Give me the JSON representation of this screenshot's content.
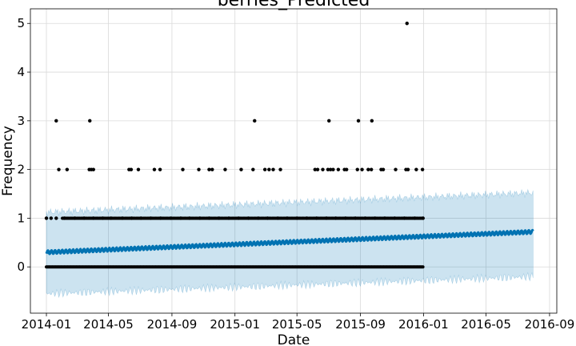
{
  "chart_data": {
    "type": "line",
    "title": "berries_Predicted",
    "xlabel": "Date",
    "ylabel": "Frequency",
    "x_ticks": [
      "2014-01",
      "2014-05",
      "2014-09",
      "2015-01",
      "2015-05",
      "2015-09",
      "2016-01",
      "2016-05",
      "2016-09"
    ],
    "y_ticks": [
      "0",
      "1",
      "2",
      "3",
      "4",
      "5"
    ],
    "xlim": [
      "2013-12-01",
      "2016-09-15"
    ],
    "ylim": [
      -0.95,
      5.3
    ],
    "grid": true,
    "colors": {
      "forecast_line": "#0072B2",
      "interval_fill": "#0072B2",
      "observed_points": "#000000"
    },
    "forecast": {
      "start": "2014-01-01",
      "end": "2016-07-31",
      "yhat_start": 0.3,
      "yhat_end": 0.72,
      "lower_start": -0.55,
      "lower_end": -0.2,
      "upper_start": 1.12,
      "upper_end": 1.52
    },
    "observed": {
      "date_range": [
        "2014-01-01",
        "2015-12-31"
      ],
      "points": [
        {
          "date": "2014-01-01",
          "y": 1
        },
        {
          "date": "2014-01-10",
          "y": 1
        },
        {
          "date": "2014-01-20",
          "y": 1
        },
        {
          "date": "2014-02-05",
          "y": 1
        },
        {
          "date": "2014-02-25",
          "y": 1
        },
        {
          "date": "2014-03-15",
          "y": 1
        },
        {
          "date": "2014-04-02",
          "y": 1
        },
        {
          "date": "2014-04-20",
          "y": 1
        },
        {
          "date": "2014-05-06",
          "y": 1
        },
        {
          "date": "2014-05-28",
          "y": 1
        },
        {
          "date": "2014-06-15",
          "y": 1
        },
        {
          "date": "2014-07-03",
          "y": 1
        },
        {
          "date": "2014-07-22",
          "y": 1
        },
        {
          "date": "2014-08-10",
          "y": 1
        },
        {
          "date": "2014-08-30",
          "y": 1
        },
        {
          "date": "2014-09-18",
          "y": 1
        },
        {
          "date": "2014-10-05",
          "y": 1
        },
        {
          "date": "2014-10-25",
          "y": 1
        },
        {
          "date": "2014-11-12",
          "y": 1
        },
        {
          "date": "2014-12-01",
          "y": 1
        },
        {
          "date": "2014-12-20",
          "y": 1
        },
        {
          "date": "2015-01-08",
          "y": 1
        },
        {
          "date": "2015-01-27",
          "y": 1
        },
        {
          "date": "2015-02-15",
          "y": 1
        },
        {
          "date": "2015-03-05",
          "y": 1
        },
        {
          "date": "2015-03-25",
          "y": 1
        },
        {
          "date": "2015-04-12",
          "y": 1
        },
        {
          "date": "2015-05-01",
          "y": 1
        },
        {
          "date": "2015-05-20",
          "y": 1
        },
        {
          "date": "2015-06-08",
          "y": 1
        },
        {
          "date": "2015-06-27",
          "y": 1
        },
        {
          "date": "2015-07-15",
          "y": 1
        },
        {
          "date": "2015-08-03",
          "y": 1
        },
        {
          "date": "2015-08-22",
          "y": 1
        },
        {
          "date": "2015-09-10",
          "y": 1
        },
        {
          "date": "2015-09-29",
          "y": 1
        },
        {
          "date": "2015-10-18",
          "y": 1
        },
        {
          "date": "2015-11-06",
          "y": 1
        },
        {
          "date": "2015-11-25",
          "y": 1
        },
        {
          "date": "2015-12-15",
          "y": 1
        },
        {
          "date": "2015-12-31",
          "y": 1
        },
        {
          "date": "2014-01-25",
          "y": 2
        },
        {
          "date": "2014-02-10",
          "y": 2
        },
        {
          "date": "2014-03-25",
          "y": 2
        },
        {
          "date": "2014-03-29",
          "y": 2
        },
        {
          "date": "2014-04-02",
          "y": 2
        },
        {
          "date": "2014-06-10",
          "y": 2
        },
        {
          "date": "2014-06-14",
          "y": 2
        },
        {
          "date": "2014-06-28",
          "y": 2
        },
        {
          "date": "2014-07-29",
          "y": 2
        },
        {
          "date": "2014-08-09",
          "y": 2
        },
        {
          "date": "2014-09-22",
          "y": 2
        },
        {
          "date": "2014-10-23",
          "y": 2
        },
        {
          "date": "2014-11-12",
          "y": 2
        },
        {
          "date": "2014-11-18",
          "y": 2
        },
        {
          "date": "2014-12-13",
          "y": 2
        },
        {
          "date": "2015-01-13",
          "y": 2
        },
        {
          "date": "2015-02-05",
          "y": 2
        },
        {
          "date": "2015-02-28",
          "y": 2
        },
        {
          "date": "2015-03-08",
          "y": 2
        },
        {
          "date": "2015-03-16",
          "y": 2
        },
        {
          "date": "2015-03-30",
          "y": 2
        },
        {
          "date": "2015-06-05",
          "y": 2
        },
        {
          "date": "2015-06-10",
          "y": 2
        },
        {
          "date": "2015-06-20",
          "y": 2
        },
        {
          "date": "2015-06-30",
          "y": 2
        },
        {
          "date": "2015-07-05",
          "y": 2
        },
        {
          "date": "2015-07-10",
          "y": 2
        },
        {
          "date": "2015-07-20",
          "y": 2
        },
        {
          "date": "2015-08-01",
          "y": 2
        },
        {
          "date": "2015-08-05",
          "y": 2
        },
        {
          "date": "2015-08-26",
          "y": 2
        },
        {
          "date": "2015-09-04",
          "y": 2
        },
        {
          "date": "2015-09-16",
          "y": 2
        },
        {
          "date": "2015-09-22",
          "y": 2
        },
        {
          "date": "2015-10-11",
          "y": 2
        },
        {
          "date": "2015-10-15",
          "y": 2
        },
        {
          "date": "2015-11-08",
          "y": 2
        },
        {
          "date": "2015-11-28",
          "y": 2
        },
        {
          "date": "2015-12-02",
          "y": 2
        },
        {
          "date": "2015-12-18",
          "y": 2
        },
        {
          "date": "2015-12-30",
          "y": 2
        },
        {
          "date": "2014-01-20",
          "y": 3
        },
        {
          "date": "2014-03-26",
          "y": 3
        },
        {
          "date": "2015-02-08",
          "y": 3
        },
        {
          "date": "2015-07-02",
          "y": 3
        },
        {
          "date": "2015-08-28",
          "y": 3
        },
        {
          "date": "2015-09-23",
          "y": 3
        },
        {
          "date": "2015-11-30",
          "y": 5
        }
      ]
    }
  }
}
